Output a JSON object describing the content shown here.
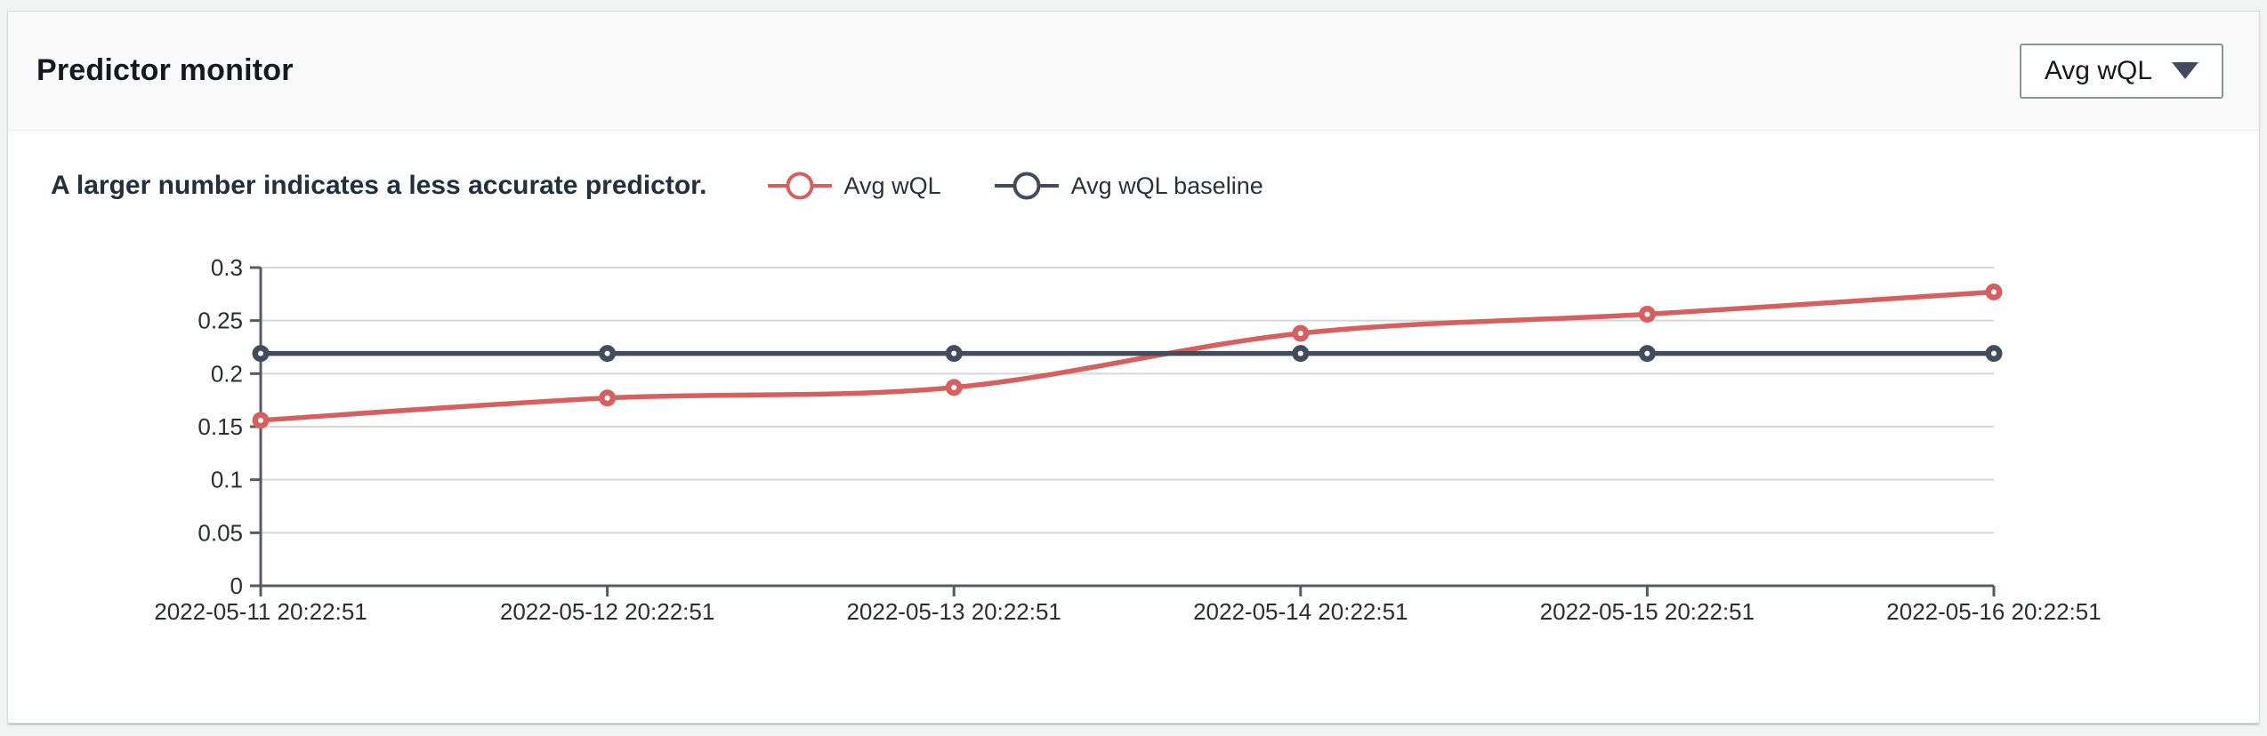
{
  "header": {
    "title": "Predictor monitor",
    "metric_dropdown": {
      "value": "Avg wQL",
      "icon": "caret-down-filled-icon"
    }
  },
  "panel": {
    "subtitle": "A larger number indicates a less accurate predictor."
  },
  "legend": {
    "items": [
      {
        "label": "Avg wQL",
        "color": "#d66060"
      },
      {
        "label": "Avg wQL baseline",
        "color": "#414d5c"
      }
    ]
  },
  "chart_data": {
    "type": "line",
    "title": "Predictor monitor — Avg wQL",
    "x": [
      "2022-05-11 20:22:51",
      "2022-05-12 20:22:51",
      "2022-05-13 20:22:51",
      "2022-05-14 20:22:51",
      "2022-05-15 20:22:51",
      "2022-05-16 20:22:51"
    ],
    "series": [
      {
        "name": "Avg wQL",
        "color": "#d66060",
        "style": "smooth",
        "marker": "filled-circle",
        "values": [
          0.156,
          0.177,
          0.187,
          0.238,
          0.256,
          0.277
        ]
      },
      {
        "name": "Avg wQL baseline",
        "color": "#414d5c",
        "style": "straight",
        "marker": "filled-circle",
        "values": [
          0.219,
          0.219,
          0.219,
          0.219,
          0.219,
          0.219
        ]
      }
    ],
    "ylim": [
      0,
      0.3
    ],
    "yticks": [
      "0",
      "0.05",
      "0.1",
      "0.15",
      "0.2",
      "0.25",
      "0.3"
    ],
    "xlabel": "",
    "ylabel": "",
    "grid": "horizontal",
    "legend_position": "top"
  },
  "colors": {
    "axis": "#545b64",
    "gridline": "#d6d6d6",
    "tick_label": "#2a2d31",
    "card_background": "#ffffff",
    "header_background": "#fafafa",
    "page_background": "#f2f3f3"
  }
}
